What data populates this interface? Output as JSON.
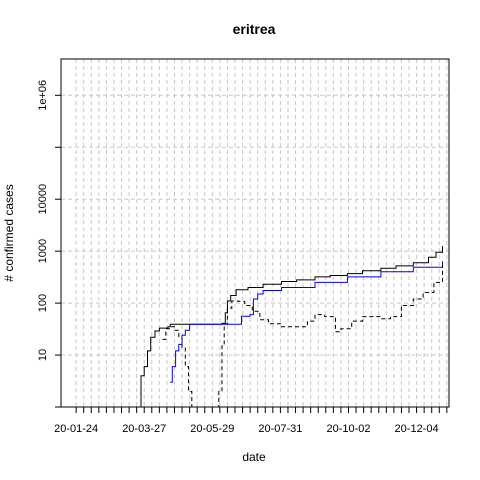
{
  "chart_data": {
    "type": "line",
    "title": "eritrea",
    "xlabel": "date",
    "ylabel": "# confirmed cases",
    "y_scale": "log",
    "ylim": [
      1,
      5000000
    ],
    "x_range": [
      "2020-01-10",
      "2021-01-03"
    ],
    "x_tick_labels": [
      "20-01-24",
      "20-03-27",
      "20-05-29",
      "20-07-31",
      "20-10-02",
      "20-12-04"
    ],
    "x_tick_dates": [
      "2020-01-24",
      "2020-03-27",
      "2020-05-29",
      "2020-07-31",
      "2020-10-02",
      "2020-12-04"
    ],
    "y_tick_labels": [
      "10",
      "100",
      "1000",
      "10000",
      "1e+06"
    ],
    "y_tick_values": [
      10,
      100,
      1000,
      10000,
      1000000
    ],
    "grid": true,
    "colors": {
      "confirmed": "#000000",
      "recovered": "#0000ff",
      "active": "#000000",
      "marker": "#ff0000"
    },
    "series": [
      {
        "style": "solid",
        "color": "#000000",
        "points": [
          [
            "2020-03-21",
            1
          ],
          [
            "2020-03-24",
            4
          ],
          [
            "2020-03-27",
            6
          ],
          [
            "2020-03-30",
            12
          ],
          [
            "2020-04-02",
            22
          ],
          [
            "2020-04-06",
            29
          ],
          [
            "2020-04-10",
            33
          ],
          [
            "2020-04-18",
            35
          ],
          [
            "2020-04-20",
            39
          ],
          [
            "2020-06-05",
            39
          ],
          [
            "2020-06-07",
            41
          ],
          [
            "2020-06-10",
            65
          ],
          [
            "2020-06-12",
            110
          ],
          [
            "2020-06-15",
            140
          ],
          [
            "2020-06-20",
            180
          ],
          [
            "2020-07-01",
            200
          ],
          [
            "2020-07-15",
            230
          ],
          [
            "2020-08-01",
            260
          ],
          [
            "2020-08-15",
            280
          ],
          [
            "2020-09-01",
            320
          ],
          [
            "2020-09-15",
            340
          ],
          [
            "2020-10-01",
            370
          ],
          [
            "2020-10-15",
            420
          ],
          [
            "2020-11-01",
            470
          ],
          [
            "2020-11-15",
            520
          ],
          [
            "2020-12-01",
            600
          ],
          [
            "2020-12-15",
            760
          ],
          [
            "2020-12-22",
            950
          ],
          [
            "2020-12-28",
            1250
          ]
        ]
      },
      {
        "style": "solid",
        "color": "#0000ff",
        "points": [
          [
            "2020-04-20",
            3
          ],
          [
            "2020-04-22",
            6
          ],
          [
            "2020-04-25",
            12
          ],
          [
            "2020-04-28",
            16
          ],
          [
            "2020-05-01",
            24
          ],
          [
            "2020-05-04",
            30
          ],
          [
            "2020-05-08",
            39
          ],
          [
            "2020-06-21",
            39
          ],
          [
            "2020-06-25",
            56
          ],
          [
            "2020-07-03",
            60
          ],
          [
            "2020-07-06",
            120
          ],
          [
            "2020-07-10",
            150
          ],
          [
            "2020-07-15",
            175
          ],
          [
            "2020-08-01",
            200
          ],
          [
            "2020-09-01",
            250
          ],
          [
            "2020-10-01",
            320
          ],
          [
            "2020-11-01",
            400
          ],
          [
            "2020-12-01",
            490
          ],
          [
            "2020-12-28",
            640
          ]
        ]
      },
      {
        "style": "dashed",
        "color": "#000000",
        "points": [
          [
            "2020-04-13",
            20
          ],
          [
            "2020-04-16",
            32
          ],
          [
            "2020-04-20",
            35
          ],
          [
            "2020-04-24",
            30
          ],
          [
            "2020-04-28",
            22
          ],
          [
            "2020-05-01",
            14
          ],
          [
            "2020-05-04",
            6
          ],
          [
            "2020-05-07",
            2
          ],
          [
            "2020-05-10",
            1
          ],
          [
            "2020-06-04",
            2
          ],
          [
            "2020-06-07",
            15
          ],
          [
            "2020-06-09",
            40
          ],
          [
            "2020-06-12",
            80
          ],
          [
            "2020-06-16",
            110
          ],
          [
            "2020-06-22",
            108
          ],
          [
            "2020-06-28",
            90
          ],
          [
            "2020-07-05",
            70
          ],
          [
            "2020-07-12",
            48
          ],
          [
            "2020-07-20",
            40
          ],
          [
            "2020-08-01",
            35
          ],
          [
            "2020-08-15",
            35
          ],
          [
            "2020-08-25",
            45
          ],
          [
            "2020-09-01",
            60
          ],
          [
            "2020-09-10",
            55
          ],
          [
            "2020-09-20",
            28
          ],
          [
            "2020-09-25",
            32
          ],
          [
            "2020-10-05",
            45
          ],
          [
            "2020-10-15",
            55
          ],
          [
            "2020-11-01",
            50
          ],
          [
            "2020-11-10",
            55
          ],
          [
            "2020-11-20",
            90
          ],
          [
            "2020-12-01",
            120
          ],
          [
            "2020-12-10",
            160
          ],
          [
            "2020-12-20",
            250
          ],
          [
            "2020-12-28",
            600
          ]
        ]
      },
      {
        "style": "solid",
        "color": "#ff0000",
        "points": [
          [
            "2020-12-20",
            1
          ],
          [
            "2020-12-29",
            1
          ]
        ]
      }
    ]
  }
}
